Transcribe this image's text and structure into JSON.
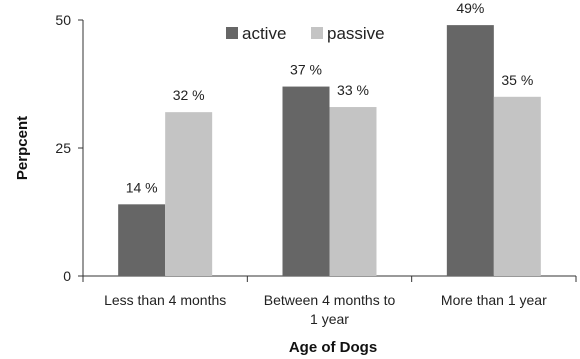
{
  "chart_data": {
    "type": "bar",
    "categories": [
      [
        "Less than 4 months"
      ],
      [
        "Between 4 months to",
        "1 year"
      ],
      [
        "More than 1 year"
      ]
    ],
    "series": [
      {
        "name": "active",
        "values": [
          14,
          37,
          49
        ],
        "labels": [
          "14 %",
          "37 %",
          "49%"
        ],
        "color": "#666666"
      },
      {
        "name": "passive",
        "values": [
          32,
          33,
          35
        ],
        "labels": [
          "32 %",
          "33 %",
          "35 %"
        ],
        "color": "#c4c4c4"
      }
    ],
    "xlabel": "Age of Dogs",
    "ylabel": "Perpcent",
    "ylim": [
      0,
      50
    ],
    "yticks": [
      0,
      25,
      50
    ],
    "legend": "top-center",
    "grid": false
  }
}
